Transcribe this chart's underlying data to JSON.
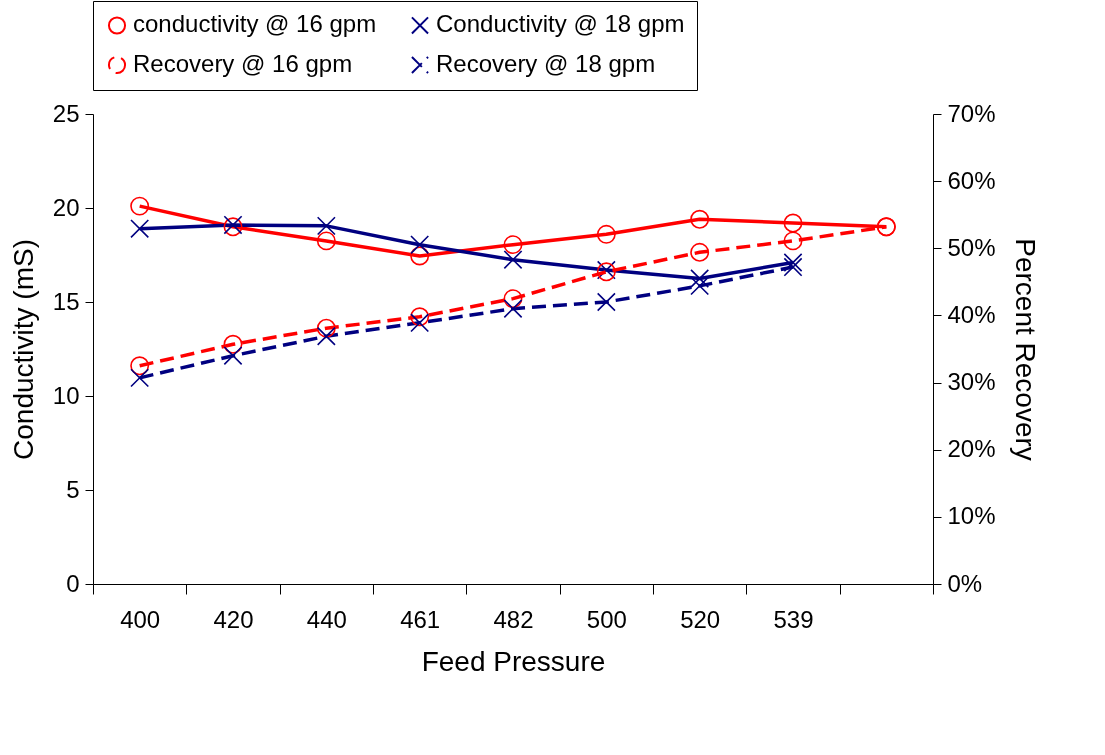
{
  "chart_data": {
    "type": "line",
    "xlabel": "Feed Pressure",
    "ylabel": "Conductivity (mS)",
    "y2label": "Percent Recovery",
    "categories": [
      "400",
      "420",
      "440",
      "461",
      "482",
      "500",
      "520",
      "539",
      null
    ],
    "ylim": [
      0,
      25
    ],
    "yticks": [
      0,
      5,
      10,
      15,
      20,
      25
    ],
    "y2lim": [
      0,
      70
    ],
    "y2ticks": [
      {
        "value": 0,
        "label": "0%"
      },
      {
        "value": 10,
        "label": "10%"
      },
      {
        "value": 20,
        "label": "20%"
      },
      {
        "value": 30,
        "label": "30%"
      },
      {
        "value": 40,
        "label": "40%"
      },
      {
        "value": 50,
        "label": "50%"
      },
      {
        "value": 60,
        "label": "60%"
      },
      {
        "value": 70,
        "label": "70%"
      }
    ],
    "grid": false,
    "legend": "top",
    "series": [
      {
        "name": "conductivity @ 16 gpm",
        "color": "#ff0000",
        "marker": "circle",
        "line_style": "solid",
        "values": [
          20.1,
          19.0,
          18.25,
          17.45,
          18.05,
          18.6,
          19.4,
          19.2,
          19.0
        ]
      },
      {
        "name": "Conductivity @ 18 gpm",
        "color": "#000080",
        "marker": "cross",
        "line_style": "solid",
        "values": [
          18.9,
          19.1,
          19.05,
          18.05,
          17.25,
          16.7,
          16.25,
          17.1,
          null
        ]
      },
      {
        "name": "Recovery @ 16 gpm",
        "color": "#ff0000",
        "marker": "circle",
        "line_style": "dashed",
        "axis": "y2",
        "values": [
          32.5,
          35.7,
          38.1,
          39.8,
          42.5,
          46.5,
          49.4,
          51.1,
          53.2
        ]
      },
      {
        "name": "Recovery @ 18 gpm",
        "color": "#000080",
        "marker": "cross",
        "line_style": "dashed",
        "axis": "y2",
        "values": [
          30.7,
          34.0,
          36.9,
          38.9,
          41.0,
          42.0,
          44.4,
          47.2,
          null
        ]
      }
    ]
  }
}
